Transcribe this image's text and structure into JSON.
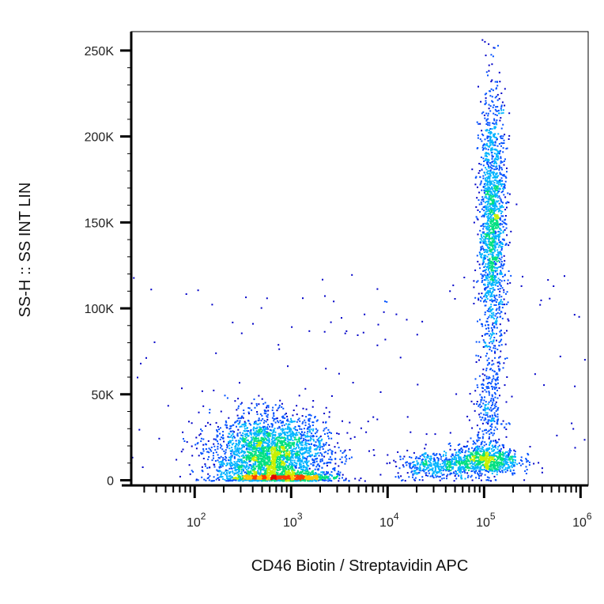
{
  "chart_data": {
    "type": "scatter",
    "style": "density-colored flow cytometry dot plot",
    "xlabel": "CD46 Biotin / Streptavidin APC",
    "ylabel": "SS-H :: SS INT LIN",
    "x_scale": "log",
    "y_scale": "linear",
    "xlim": [
      22,
      1200000
    ],
    "ylim": [
      -3000,
      261000
    ],
    "x_ticks": [
      {
        "value": 100,
        "base": "10",
        "exp": "2"
      },
      {
        "value": 1000,
        "base": "10",
        "exp": "3"
      },
      {
        "value": 10000,
        "base": "10",
        "exp": "4"
      },
      {
        "value": 100000,
        "base": "10",
        "exp": "5"
      },
      {
        "value": 1000000,
        "base": "10",
        "exp": "6"
      }
    ],
    "y_ticks": [
      {
        "value": 0,
        "label": "0"
      },
      {
        "value": 50000,
        "label": "50K"
      },
      {
        "value": 100000,
        "label": "100K"
      },
      {
        "value": 150000,
        "label": "150K"
      },
      {
        "value": 200000,
        "label": "200K"
      },
      {
        "value": 250000,
        "label": "250K"
      }
    ],
    "grid": false,
    "legend": "none",
    "density_colors": [
      "#0000c8",
      "#0050ff",
      "#00b4ff",
      "#00e080",
      "#c8f000",
      "#ffc800",
      "#ff3c00",
      "#e00000"
    ],
    "populations": [
      {
        "x_center": 600,
        "x_sd_decades": 0.3,
        "y_center": 14000,
        "y_sd": 12000,
        "relative_count": 0.45
      },
      {
        "x_center": 1000,
        "x_sd_decades": 0.25,
        "y_center": 2000,
        "y_sd": 1500,
        "relative_count": 0.08
      },
      {
        "x_center": 30000,
        "x_sd_decades": 0.2,
        "y_center": 9000,
        "y_sd": 4000,
        "relative_count": 0.06
      },
      {
        "x_center": 100000,
        "x_sd_decades": 0.18,
        "y_center": 12000,
        "y_sd": 4500,
        "relative_count": 0.12
      },
      {
        "x_center": 110000,
        "x_sd_decades": 0.08,
        "y_center": 40000,
        "y_sd": 15000,
        "relative_count": 0.04
      },
      {
        "x_center": 120000,
        "x_sd_decades": 0.07,
        "y_center": 148000,
        "y_sd": 38000,
        "relative_count": 0.25
      }
    ]
  }
}
